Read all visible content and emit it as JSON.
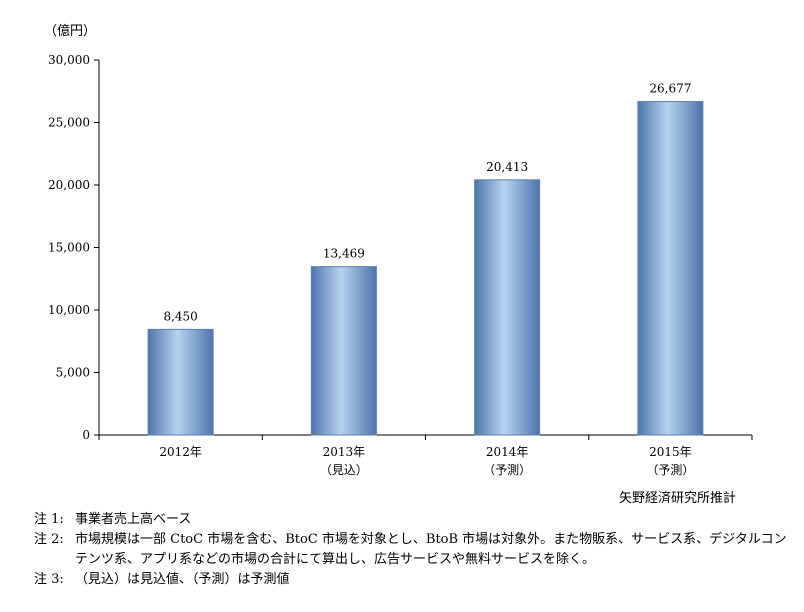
{
  "chart_data": {
    "type": "bar",
    "unit_label": "（億円）",
    "categories": [
      [
        "2012年"
      ],
      [
        "2013年",
        "（見込）"
      ],
      [
        "2014年",
        "（予測）"
      ],
      [
        "2015年",
        "（予測）"
      ]
    ],
    "values": [
      8450,
      13469,
      20413,
      26677
    ],
    "value_labels": [
      "8,450",
      "13,469",
      "20,413",
      "26,677"
    ],
    "ylim": [
      0,
      30000
    ],
    "yticks": [
      0,
      5000,
      10000,
      15000,
      20000,
      25000,
      30000
    ],
    "ytick_labels": [
      "0",
      "5,000",
      "10,000",
      "15,000",
      "20,000",
      "25,000",
      "30,000"
    ],
    "grid": false,
    "legend": "none",
    "colors": {
      "bar_edge": "#5a7fb5",
      "bar_light": "#b9d3ee",
      "bar_dark": "#4e74ad",
      "axis": "#000000"
    }
  },
  "source": "矢野経済研究所推計",
  "notes": [
    {
      "label": "注 1:",
      "text": "事業者売上高ベース"
    },
    {
      "label": "注 2:",
      "text": "市場規模は一部 CtoC 市場を含む、BtoC 市場を対象とし、BtoB 市場は対象外。また物販系、サービス系、デジタルコンテンツ系、アプリ系などの市場の合計にて算出し、広告サービスや無料サービスを除く。"
    },
    {
      "label": "注 3:",
      "text": "（見込）は見込値、（予測）は予測値"
    }
  ]
}
